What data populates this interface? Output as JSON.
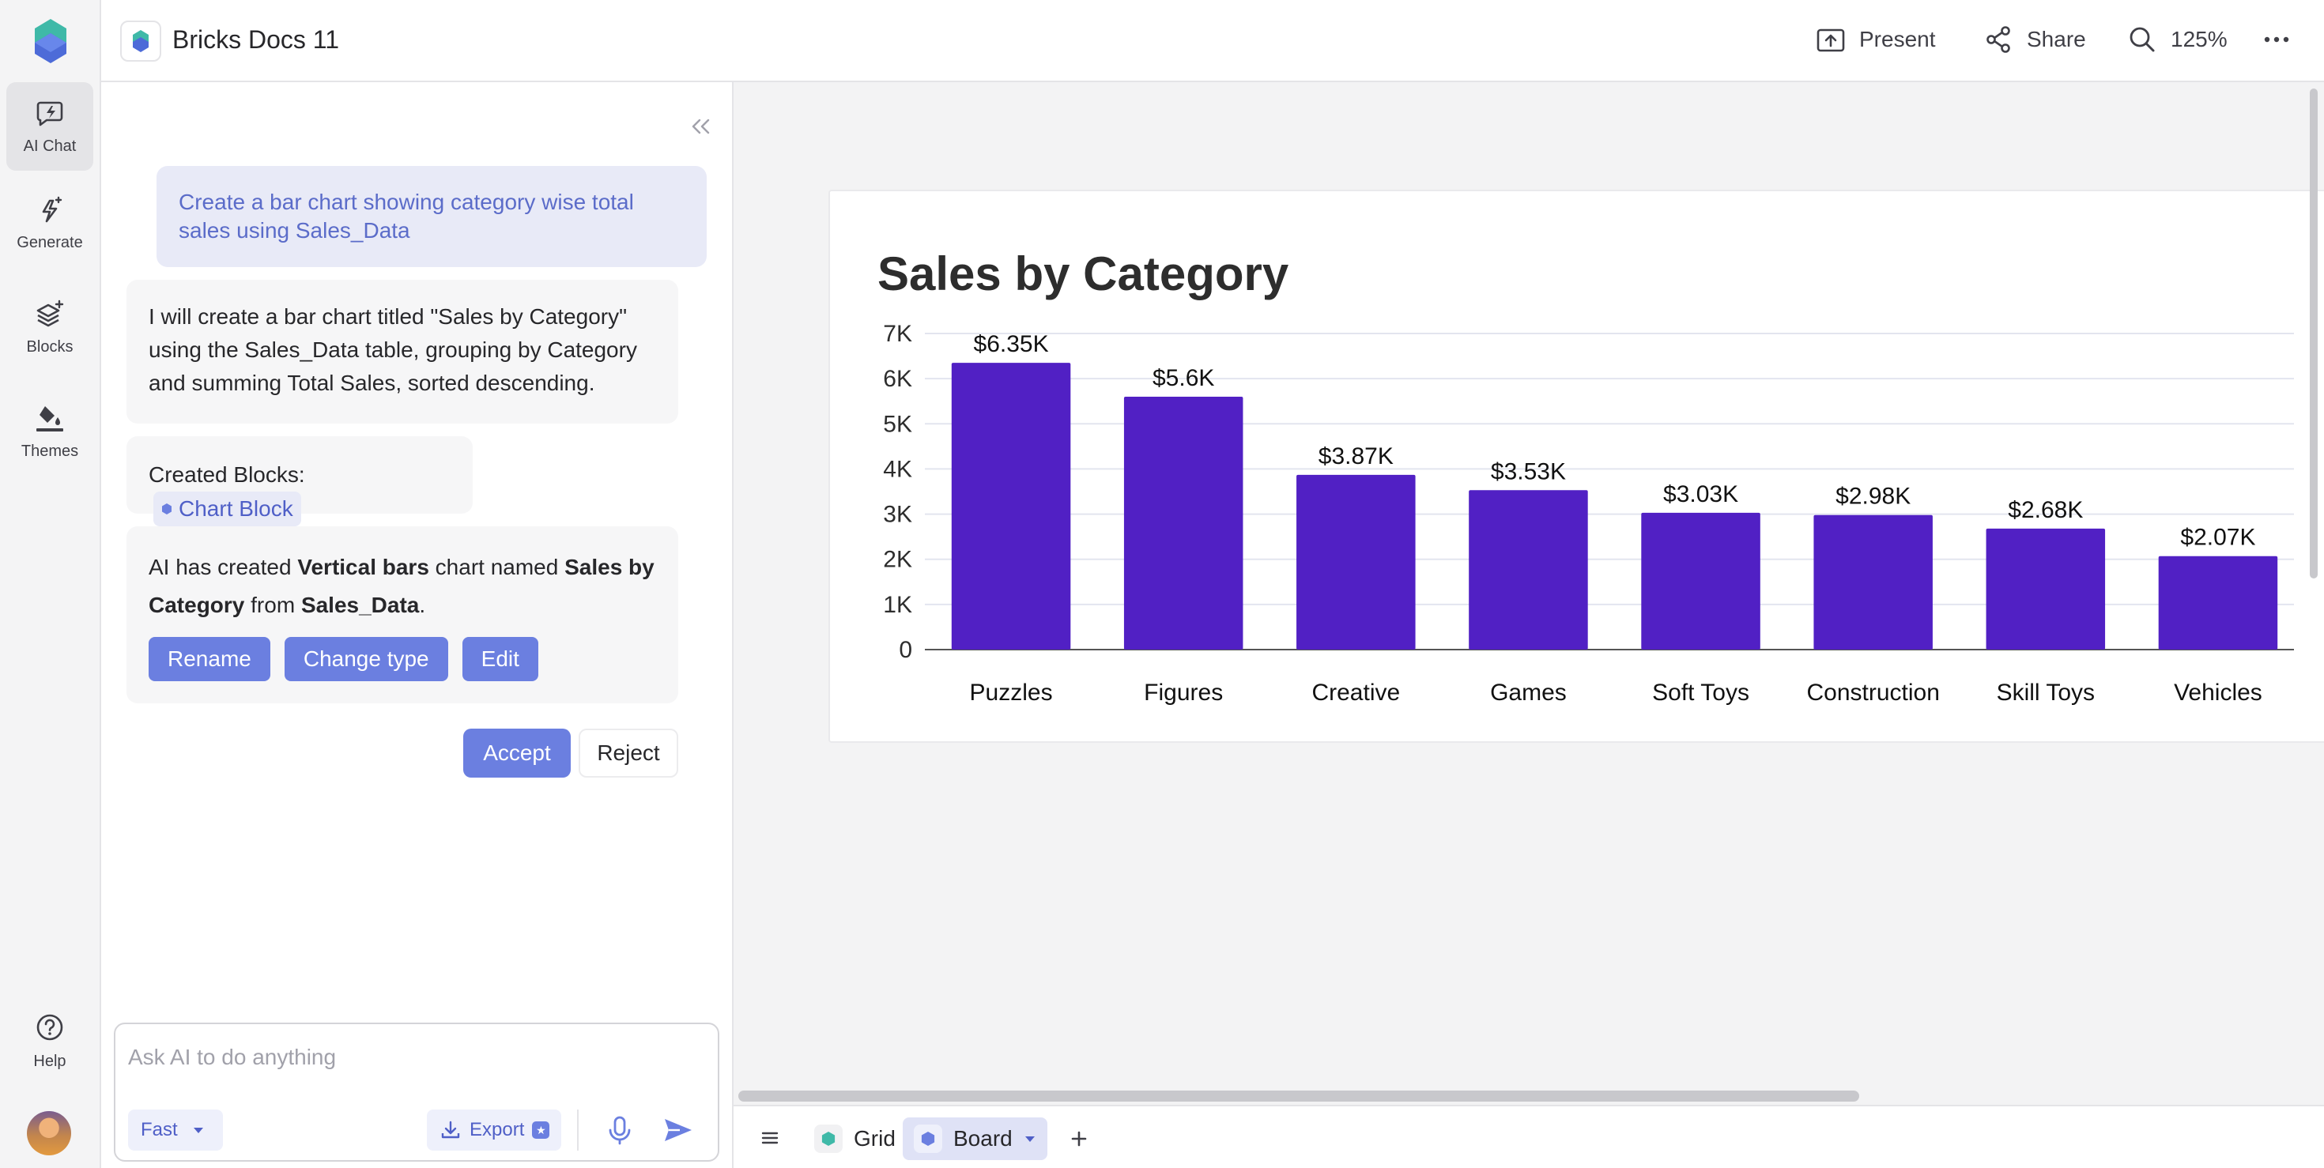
{
  "app": {
    "doc_title": "Bricks Docs 11"
  },
  "rail": {
    "items": [
      {
        "label": "AI Chat",
        "icon": "ai-chat-icon",
        "active": true
      },
      {
        "label": "Generate",
        "icon": "generate-icon",
        "active": false
      },
      {
        "label": "Blocks",
        "icon": "blocks-icon",
        "active": false
      },
      {
        "label": "Themes",
        "icon": "themes-icon",
        "active": false
      }
    ],
    "help_label": "Help"
  },
  "topbar": {
    "present_label": "Present",
    "share_label": "Share",
    "zoom_label": "125%"
  },
  "chat": {
    "user_message": "Create a bar chart showing category wise total sales using Sales_Data",
    "ai_reply": "I will create a bar chart titled \"Sales by Category\" using the Sales_Data table, grouping by Category and summing Total Sales, sorted descending.",
    "created_blocks_label": "Created Blocks:",
    "created_block_chip": "Chart Block",
    "summary": {
      "part1": "AI has created ",
      "chart_type": "Vertical bars",
      "part2": " chart named ",
      "chart_name": "Sales by Category",
      "part3": " from ",
      "source": "Sales_Data",
      "part4": "."
    },
    "actions": {
      "rename": "Rename",
      "change_type": "Change type",
      "edit": "Edit"
    },
    "accept_label": "Accept",
    "reject_label": "Reject",
    "composer": {
      "placeholder": "Ask AI to do anything",
      "mode_label": "Fast",
      "export_label": "Export"
    }
  },
  "tabs": {
    "grid_label": "Grid",
    "board_label": "Board"
  },
  "colors": {
    "accent": "#6b7fe0",
    "bar": "#5120c4",
    "user_bubble": "#e8eaf7"
  },
  "chart_data": {
    "type": "bar",
    "title": "Sales by Category",
    "categories": [
      "Puzzles",
      "Figures",
      "Creative",
      "Games",
      "Soft Toys",
      "Construction",
      "Skill Toys",
      "Vehicles"
    ],
    "values": [
      6350,
      5600,
      3870,
      3530,
      3030,
      2980,
      2680,
      2070
    ],
    "data_labels": [
      "$6.35K",
      "$5.6K",
      "$3.87K",
      "$3.53K",
      "$3.03K",
      "$2.98K",
      "$2.68K",
      "$2.07K"
    ],
    "y_ticks": [
      0,
      1000,
      2000,
      3000,
      4000,
      5000,
      6000,
      7000
    ],
    "y_tick_labels": [
      "0",
      "1K",
      "2K",
      "3K",
      "4K",
      "5K",
      "6K",
      "7K"
    ],
    "ylim": [
      0,
      7000
    ],
    "grid": true,
    "legend": false,
    "xlabel": "",
    "ylabel": ""
  }
}
